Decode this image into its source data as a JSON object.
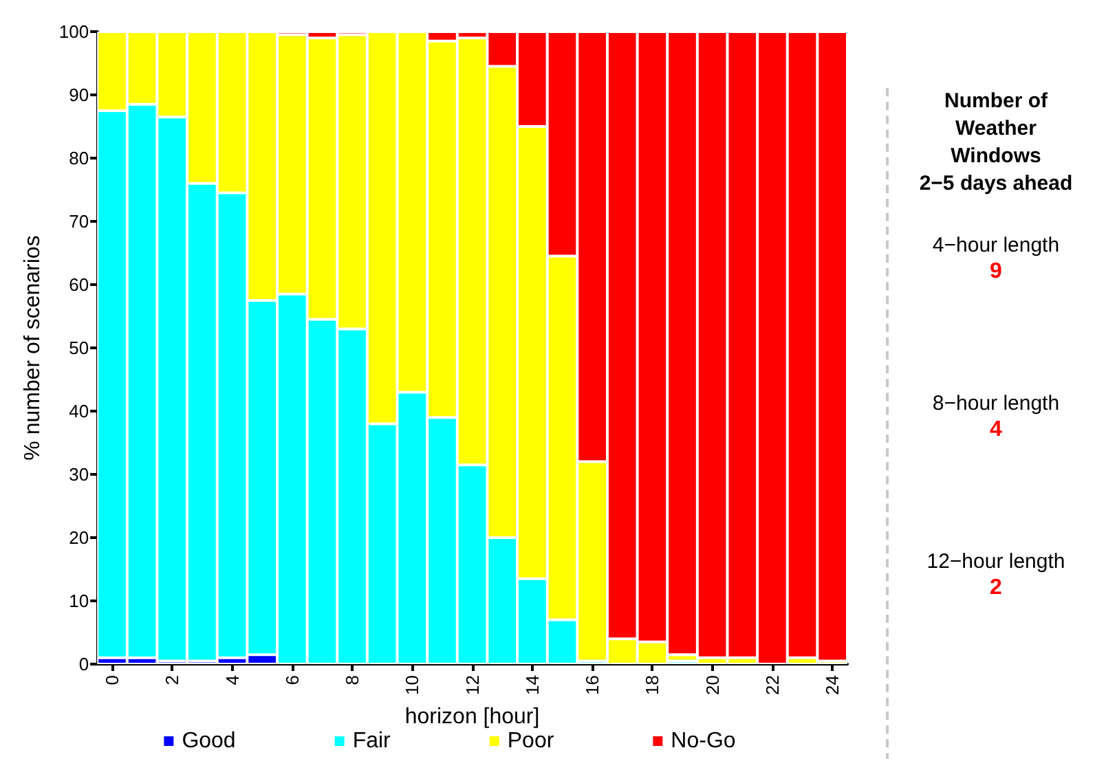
{
  "chart_data": [
    {
      "type": "bar",
      "stacked": true,
      "ylabel": "% number of scenarios",
      "xlabel": "horizon [hour]",
      "categories": [
        "0",
        null,
        "2",
        null,
        "4",
        null,
        "6",
        null,
        "8",
        null,
        "10",
        null,
        "12",
        null,
        "14",
        null,
        "16",
        null,
        "18",
        null,
        "20",
        null,
        "22",
        null,
        "24"
      ],
      "series": [
        {
          "name": "Good",
          "color": "#0000ff",
          "values": [
            1,
            1,
            0.5,
            0.5,
            1,
            1.5,
            0,
            0,
            0,
            0,
            0,
            0,
            0,
            0,
            0,
            0,
            0,
            0,
            0,
            0,
            0,
            0,
            0,
            0,
            0
          ]
        },
        {
          "name": "Fair",
          "color": "#00ffff",
          "values": [
            86.5,
            87.5,
            86,
            75.5,
            73.5,
            56,
            58.5,
            54.5,
            53,
            38,
            43,
            39,
            31.5,
            20,
            13.5,
            7,
            0.5,
            0,
            0,
            0.5,
            0,
            0,
            0,
            0,
            0
          ]
        },
        {
          "name": "Poor",
          "color": "#ffff00",
          "values": [
            12.5,
            11.5,
            13.5,
            24,
            25.5,
            42.5,
            41,
            44.5,
            46.5,
            62,
            57,
            59.5,
            67.5,
            74.5,
            71.5,
            57.5,
            31.5,
            4,
            3.5,
            1,
            1,
            1,
            0,
            1,
            0.5
          ]
        },
        {
          "name": "No-Go",
          "color": "#ff0000",
          "values": [
            0,
            0,
            0,
            0,
            0,
            0,
            0.5,
            1,
            0.5,
            0,
            0,
            1.5,
            1,
            5.5,
            15,
            35.5,
            68,
            96,
            96.5,
            98.5,
            99,
            99,
            100,
            99,
            99.5
          ]
        }
      ],
      "ylim": [
        0,
        100
      ],
      "yticks": [
        0,
        10,
        20,
        30,
        40,
        50,
        60,
        70,
        80,
        90,
        100
      ],
      "grid": false,
      "legend": "bottom",
      "marker": "square"
    },
    {
      "type": "other",
      "title": "Number of\nWeather\nWindows\n2−5 days ahead",
      "annotations": [
        "4−hour length\n9",
        "8−hour length\n4",
        "12−hour length\n2"
      ]
    }
  ]
}
